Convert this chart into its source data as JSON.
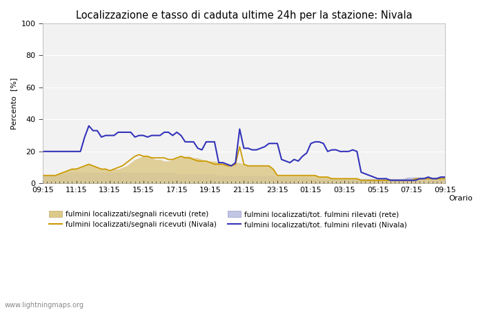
{
  "title": "Localizzazione e tasso di caduta ultime 24h per la stazione: Nivala",
  "ylabel": "Percento  [%]",
  "xlabel": "Orario",
  "xlim_labels": [
    "09:15",
    "11:15",
    "13:15",
    "15:15",
    "17:15",
    "19:15",
    "21:15",
    "23:15",
    "01:15",
    "03:15",
    "05:15",
    "07:15",
    "09:15"
  ],
  "ylim": [
    0,
    100
  ],
  "yticks": [
    0,
    20,
    40,
    60,
    80,
    100
  ],
  "watermark": "www.lightningmaps.org",
  "legend": [
    {
      "label": "fulmini localizzati/segnali ricevuti (rete)",
      "color": "#ddc98a",
      "type": "fill"
    },
    {
      "label": "fulmini localizzati/segnali ricevuti (Nivala)",
      "color": "#cc9900",
      "type": "line"
    },
    {
      "label": "fulmini localizzati/tot. fulmini rilevati (rete)",
      "color": "#b8bce0",
      "type": "fill"
    },
    {
      "label": "fulmini localizzati/tot. fulmini rilevati (Nivala)",
      "color": "#3333bb",
      "type": "line"
    }
  ],
  "n_points": 97,
  "rete_segnali": [
    5,
    5,
    5,
    5,
    6,
    7,
    8,
    9,
    9,
    10,
    11,
    12,
    11,
    10,
    9,
    9,
    8,
    9,
    9,
    10,
    11,
    13,
    15,
    16,
    17,
    17,
    16,
    15,
    15,
    14,
    14,
    15,
    16,
    17,
    17,
    17,
    16,
    16,
    15,
    14,
    14,
    14,
    13,
    12,
    11,
    12,
    13,
    13,
    12,
    11,
    11,
    11,
    11,
    11,
    11,
    9,
    5,
    5,
    5,
    5,
    5,
    5,
    5,
    5,
    5,
    5,
    4,
    4,
    4,
    3,
    3,
    3,
    3,
    3,
    3,
    3,
    2,
    2,
    2,
    2,
    2,
    2,
    2,
    2,
    2,
    2,
    2,
    2,
    2,
    3,
    3,
    3,
    3,
    3,
    3,
    3,
    3
  ],
  "rete_tot": [
    5,
    5,
    5,
    5,
    6,
    6,
    7,
    7,
    7,
    7,
    7,
    7,
    7,
    7,
    7,
    7,
    7,
    7,
    7,
    7,
    7,
    7,
    7,
    7,
    7,
    7,
    7,
    7,
    7,
    7,
    7,
    7,
    6,
    6,
    6,
    6,
    6,
    6,
    6,
    6,
    6,
    6,
    5,
    5,
    5,
    5,
    5,
    5,
    5,
    5,
    5,
    5,
    5,
    5,
    5,
    5,
    4,
    4,
    4,
    4,
    4,
    4,
    4,
    4,
    3,
    3,
    3,
    3,
    3,
    3,
    3,
    3,
    3,
    3,
    3,
    3,
    3,
    3,
    3,
    3,
    3,
    3,
    3,
    3,
    3,
    3,
    3,
    4,
    4,
    4,
    4,
    4,
    4,
    4,
    4,
    4,
    4
  ],
  "nivala_segnali": [
    5,
    5,
    5,
    5,
    6,
    7,
    8,
    9,
    9,
    10,
    11,
    12,
    11,
    10,
    9,
    9,
    8,
    9,
    10,
    11,
    13,
    15,
    17,
    18,
    17,
    17,
    16,
    16,
    16,
    16,
    15,
    15,
    16,
    17,
    16,
    16,
    15,
    14,
    14,
    14,
    13,
    12,
    12,
    12,
    11,
    11,
    12,
    23,
    12,
    11,
    11,
    11,
    11,
    11,
    11,
    9,
    5,
    5,
    5,
    5,
    5,
    5,
    5,
    5,
    5,
    5,
    4,
    4,
    4,
    3,
    3,
    3,
    3,
    3,
    3,
    3,
    2,
    2,
    2,
    2,
    2,
    2,
    2,
    2,
    2,
    2,
    2,
    2,
    2,
    3,
    3,
    3,
    3,
    3,
    3,
    3,
    3
  ],
  "nivala_tot": [
    20,
    20,
    20,
    20,
    20,
    20,
    20,
    20,
    20,
    20,
    29,
    36,
    33,
    33,
    29,
    30,
    30,
    30,
    32,
    32,
    32,
    32,
    29,
    30,
    30,
    29,
    30,
    30,
    30,
    32,
    32,
    30,
    32,
    30,
    26,
    26,
    26,
    22,
    21,
    26,
    26,
    26,
    13,
    13,
    12,
    11,
    13,
    34,
    22,
    22,
    21,
    21,
    22,
    23,
    25,
    25,
    25,
    15,
    14,
    13,
    15,
    14,
    17,
    19,
    25,
    26,
    26,
    25,
    20,
    21,
    21,
    20,
    20,
    20,
    21,
    20,
    7,
    6,
    5,
    4,
    3,
    3,
    3,
    2,
    2,
    2,
    2,
    2,
    2,
    2,
    3,
    3,
    4,
    3,
    3,
    4,
    4
  ]
}
